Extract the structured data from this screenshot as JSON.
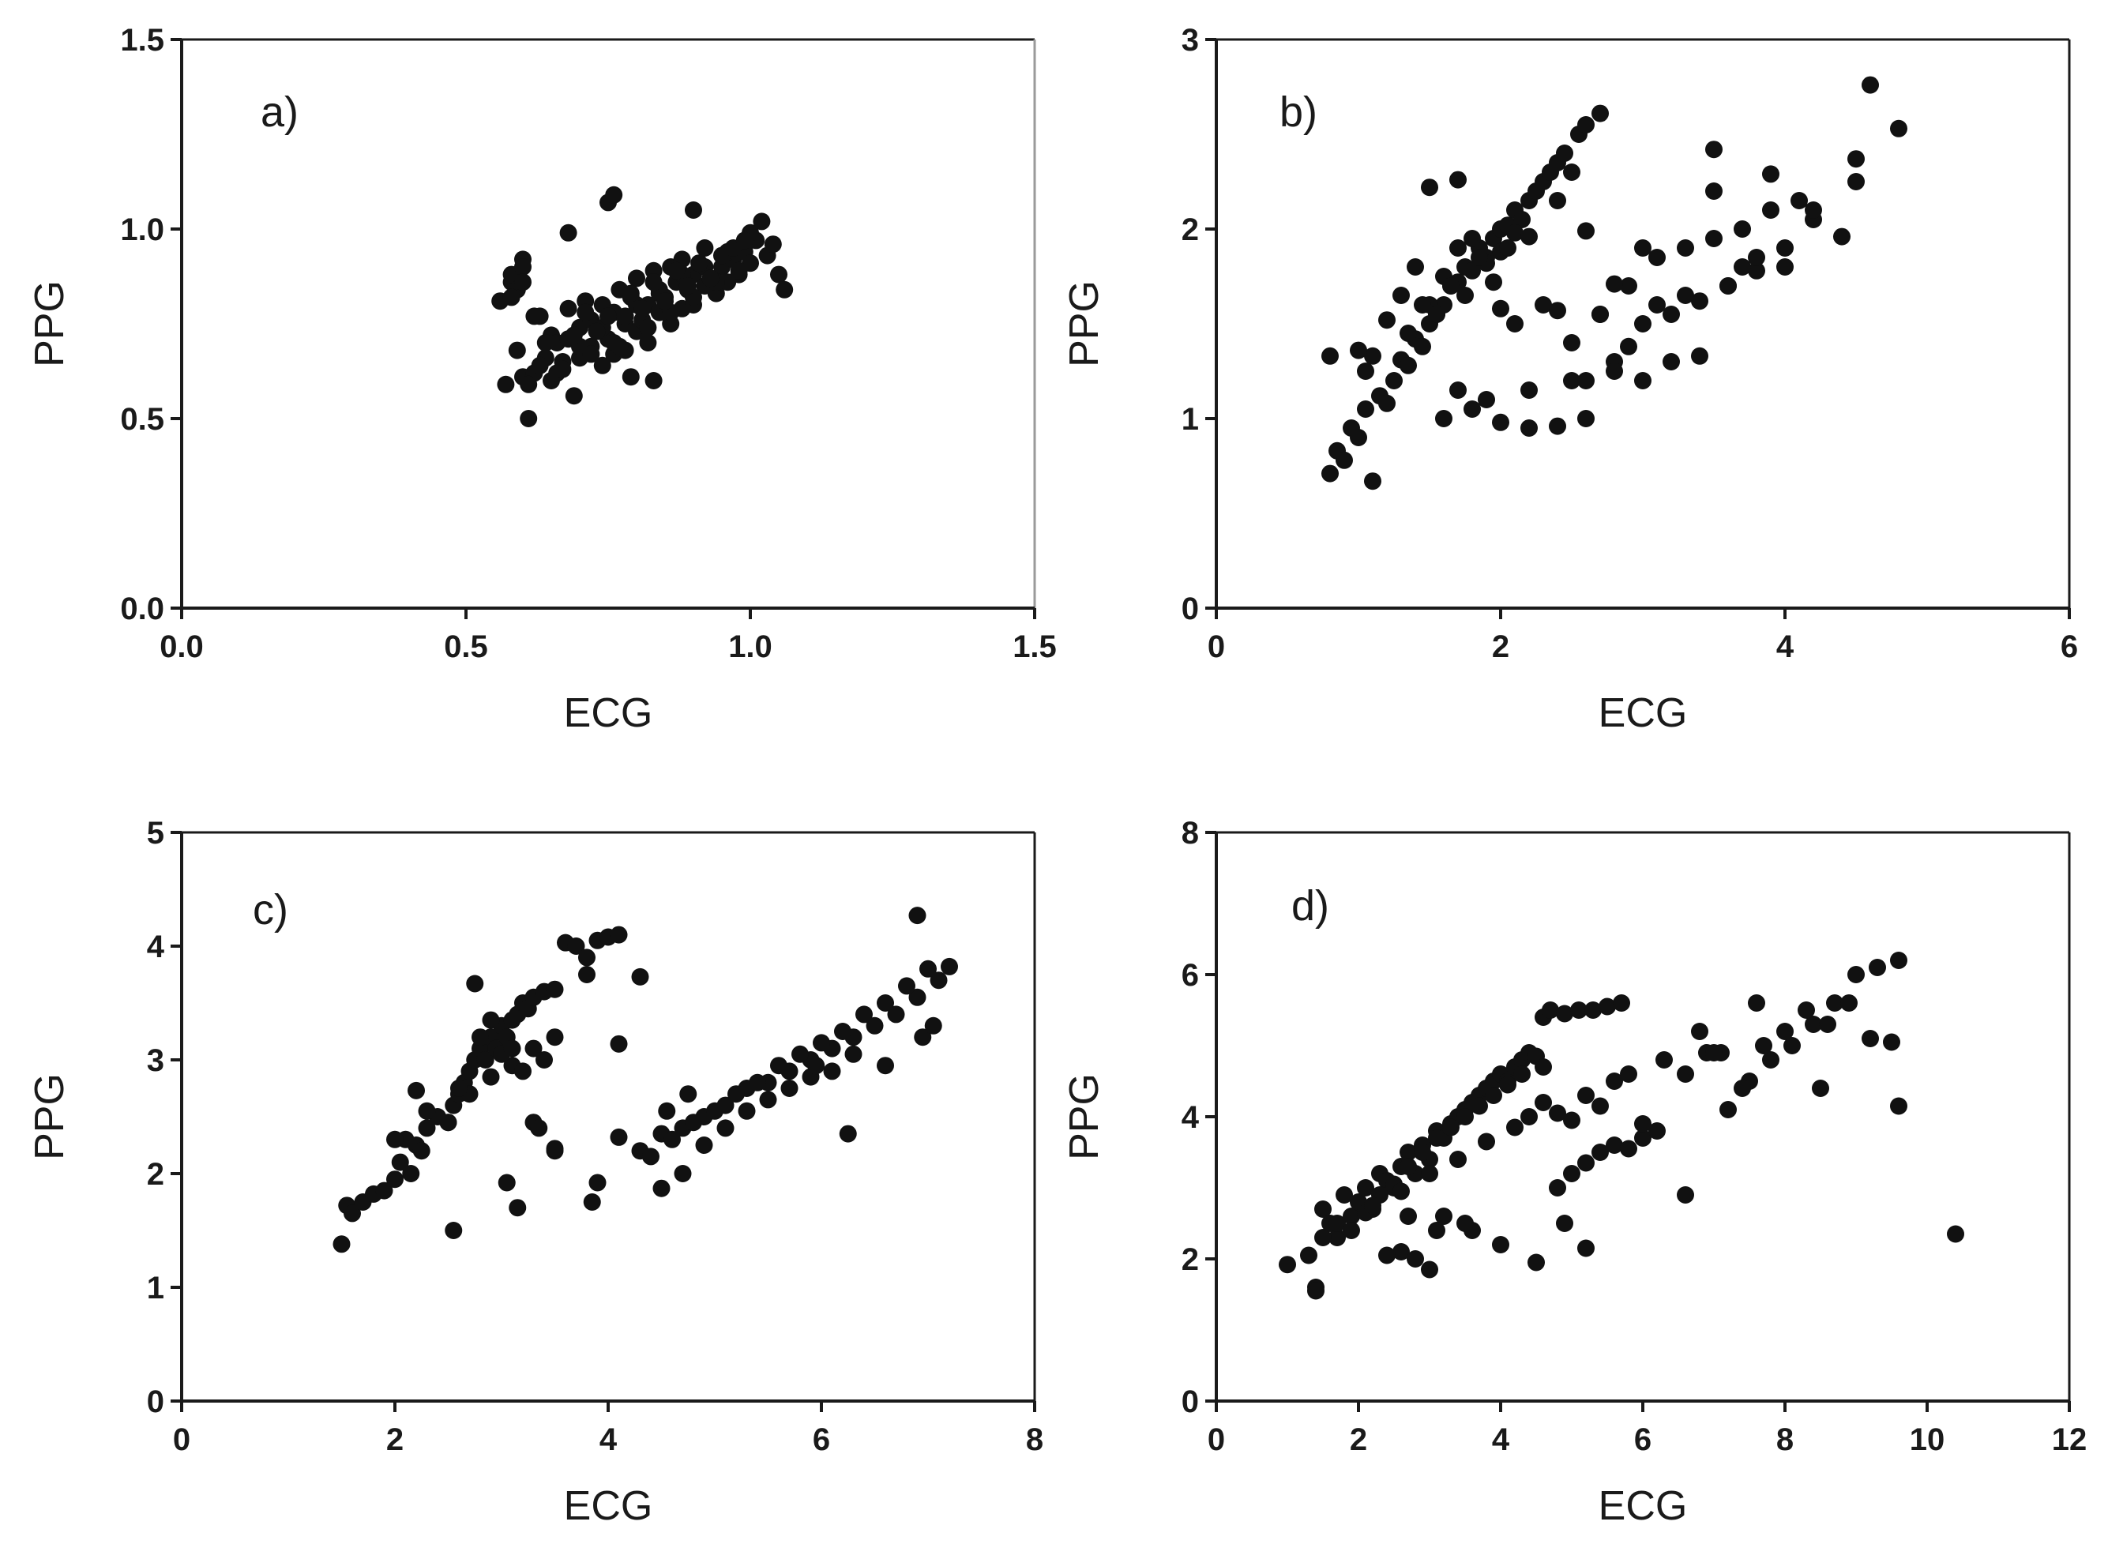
{
  "chart_data": [
    {
      "type": "scatter",
      "panel_label": "a)",
      "xlabel": "ECG",
      "ylabel": "PPG",
      "xlim": [
        0,
        1.5
      ],
      "ylim": [
        0,
        1.5
      ],
      "xticks": [
        "0.0",
        "0.5",
        "1.0",
        "1.5"
      ],
      "yticks": [
        "0.0",
        "0.5",
        "1.0",
        "1.5"
      ],
      "grid": false,
      "series": [
        {
          "name": "points",
          "x": [
            0.56,
            0.57,
            0.58,
            0.59,
            0.6,
            0.61,
            0.6,
            0.62,
            0.63,
            0.64,
            0.65,
            0.65,
            0.66,
            0.67,
            0.68,
            0.69,
            0.7,
            0.7,
            0.71,
            0.72,
            0.72,
            0.73,
            0.74,
            0.74,
            0.75,
            0.76,
            0.76,
            0.77,
            0.78,
            0.78,
            0.79,
            0.8,
            0.8,
            0.81,
            0.82,
            0.82,
            0.83,
            0.84,
            0.84,
            0.85,
            0.86,
            0.86,
            0.87,
            0.88,
            0.88,
            0.89,
            0.9,
            0.9,
            0.91,
            0.92,
            0.92,
            0.93,
            0.94,
            0.95,
            0.96,
            0.97,
            0.98,
            0.99,
            1.0,
            1.01,
            1.02,
            1.03,
            1.04,
            1.05,
            1.06,
            0.58,
            0.59,
            0.6,
            0.61,
            0.63,
            0.66,
            0.68,
            0.7,
            0.72,
            0.74,
            0.76,
            0.78,
            0.8,
            0.82,
            0.84,
            0.86,
            0.88,
            0.9,
            0.92,
            0.94,
            0.96,
            0.98,
            1.0,
            0.64,
            0.67,
            0.69,
            0.71,
            0.73,
            0.75,
            0.77,
            0.79,
            0.81,
            0.83,
            0.85,
            0.87,
            0.89,
            0.91,
            0.93,
            0.95,
            0.97,
            0.99,
            0.75,
            0.76,
            0.68,
            0.6,
            0.58,
            0.62,
            0.9,
            0.83,
            0.79
          ],
          "y": [
            0.81,
            0.59,
            0.86,
            0.68,
            0.61,
            0.5,
            0.92,
            0.62,
            0.77,
            0.66,
            0.72,
            0.6,
            0.7,
            0.65,
            0.79,
            0.56,
            0.74,
            0.66,
            0.81,
            0.69,
            0.76,
            0.73,
            0.64,
            0.8,
            0.71,
            0.78,
            0.67,
            0.84,
            0.75,
            0.68,
            0.82,
            0.73,
            0.87,
            0.76,
            0.8,
            0.7,
            0.89,
            0.78,
            0.84,
            0.82,
            0.9,
            0.75,
            0.86,
            0.79,
            0.92,
            0.84,
            0.88,
            0.8,
            0.91,
            0.85,
            0.95,
            0.87,
            0.83,
            0.9,
            0.86,
            0.92,
            0.88,
            0.94,
            0.91,
            0.97,
            1.02,
            0.93,
            0.96,
            0.88,
            0.84,
            0.88,
            0.84,
            0.9,
            0.59,
            0.64,
            0.62,
            0.71,
            0.69,
            0.67,
            0.74,
            0.7,
            0.77,
            0.8,
            0.74,
            0.83,
            0.78,
            0.88,
            0.82,
            0.9,
            0.86,
            0.94,
            0.89,
            0.99,
            0.7,
            0.63,
            0.72,
            0.78,
            0.73,
            0.77,
            0.69,
            0.83,
            0.79,
            0.86,
            0.81,
            0.89,
            0.85,
            0.91,
            0.87,
            0.93,
            0.95,
            0.97,
            1.07,
            1.09,
            0.99,
            0.86,
            0.82,
            0.77,
            1.05,
            0.6,
            0.61
          ]
        }
      ]
    },
    {
      "type": "scatter",
      "panel_label": "b)",
      "xlabel": "ECG",
      "ylabel": "PPG",
      "xlim": [
        0,
        6
      ],
      "ylim": [
        0,
        3
      ],
      "xticks": [
        "0",
        "2",
        "4",
        "6"
      ],
      "yticks": [
        "0",
        "1",
        "2",
        "3"
      ],
      "grid": false,
      "series": [
        {
          "name": "points",
          "x": [
            0.8,
            0.85,
            0.9,
            0.95,
            1.0,
            1.05,
            1.1,
            1.15,
            1.2,
            1.25,
            1.3,
            1.35,
            1.4,
            1.45,
            1.5,
            1.55,
            1.6,
            1.65,
            1.7,
            1.75,
            1.8,
            1.85,
            1.9,
            1.95,
            2.0,
            2.05,
            2.1,
            2.15,
            2.2,
            2.25,
            2.3,
            2.35,
            2.4,
            2.45,
            2.5,
            2.55,
            2.6,
            2.7,
            1.3,
            1.4,
            1.5,
            1.6,
            1.7,
            1.8,
            1.9,
            2.0,
            2.1,
            1.2,
            1.35,
            1.45,
            1.55,
            1.65,
            1.75,
            1.85,
            1.95,
            2.05,
            2.2,
            1.5,
            1.7,
            1.1,
            1.0,
            0.8,
            1.05,
            2.6,
            2.4,
            2.1,
            1.9,
            1.7,
            1.6,
            1.8,
            2.0,
            2.2,
            2.4,
            2.6,
            2.8,
            3.0,
            3.2,
            3.4,
            3.6,
            3.8,
            4.0,
            2.5,
            2.7,
            2.9,
            3.1,
            3.3,
            3.5,
            3.7,
            3.9,
            4.1,
            2.3,
            2.5,
            2.7,
            2.9,
            3.1,
            3.3,
            3.5,
            3.7,
            2.6,
            2.8,
            3.0,
            3.2,
            3.4,
            3.6,
            3.8,
            4.0,
            4.2,
            4.4,
            4.5,
            4.6,
            4.8,
            4.2,
            3.5,
            3.0,
            2.8,
            2.4,
            2.2,
            2.0,
            3.9,
            4.5
          ],
          "y": [
            0.71,
            0.83,
            0.78,
            0.95,
            0.9,
            1.05,
            0.67,
            1.12,
            1.08,
            1.2,
            1.31,
            1.28,
            1.42,
            1.38,
            1.5,
            1.55,
            1.6,
            1.7,
            1.72,
            1.8,
            1.78,
            1.9,
            1.85,
            1.95,
            2.0,
            2.02,
            2.1,
            2.05,
            2.15,
            2.2,
            2.25,
            2.3,
            2.35,
            2.4,
            2.3,
            2.5,
            2.55,
            2.61,
            1.65,
            1.8,
            1.6,
            1.75,
            1.9,
            1.95,
            1.82,
            1.88,
            1.98,
            1.52,
            1.45,
            1.6,
            1.55,
            1.7,
            1.65,
            1.85,
            1.72,
            1.9,
            1.96,
            2.22,
            2.26,
            1.33,
            1.36,
            1.33,
            1.25,
            1.99,
            2.15,
            1.5,
            1.1,
            1.15,
            1.0,
            1.05,
            0.98,
            0.95,
            0.96,
            1.2,
            1.3,
            1.5,
            1.55,
            1.62,
            1.7,
            1.78,
            1.8,
            1.4,
            1.55,
            1.7,
            1.85,
            1.9,
            1.95,
            2.0,
            2.1,
            2.15,
            1.6,
            1.2,
            1.55,
            1.38,
            1.6,
            1.65,
            2.2,
            1.8,
            1.0,
            1.25,
            1.2,
            1.3,
            1.33,
            1.7,
            1.85,
            1.9,
            2.05,
            1.96,
            2.37,
            2.76,
            2.53,
            2.1,
            2.42,
            1.9,
            1.71,
            1.57,
            1.15,
            1.58,
            2.29,
            2.25
          ]
        }
      ]
    },
    {
      "type": "scatter",
      "panel_label": "c)",
      "xlabel": "ECG",
      "ylabel": "PPG",
      "xlim": [
        0,
        8
      ],
      "ylim": [
        0,
        5
      ],
      "xticks": [
        "0",
        "2",
        "4",
        "6",
        "8"
      ],
      "yticks": [
        "0",
        "1",
        "2",
        "3",
        "4",
        "5"
      ],
      "grid": false,
      "series": [
        {
          "name": "points",
          "x": [
            1.5,
            1.55,
            1.6,
            1.7,
            1.8,
            1.9,
            2.0,
            2.05,
            2.1,
            2.15,
            2.2,
            2.25,
            2.3,
            2.4,
            2.5,
            2.55,
            2.6,
            2.65,
            2.7,
            2.75,
            2.8,
            2.85,
            2.9,
            2.95,
            3.0,
            3.05,
            3.1,
            3.15,
            3.2,
            3.25,
            3.3,
            3.4,
            3.5,
            3.6,
            3.7,
            3.8,
            3.9,
            4.0,
            4.1,
            2.3,
            2.5,
            2.7,
            2.9,
            3.1,
            3.3,
            3.5,
            2.6,
            2.8,
            3.0,
            3.2,
            3.4,
            2.2,
            2.0,
            2.75,
            2.9,
            3.1,
            3.3,
            3.5,
            3.9,
            4.3,
            4.1,
            3.8,
            3.05,
            3.15,
            3.35,
            3.5,
            3.85,
            2.55,
            4.1,
            4.3,
            4.5,
            4.7,
            4.9,
            5.1,
            5.3,
            5.5,
            5.7,
            5.9,
            6.1,
            6.3,
            6.5,
            6.7,
            6.9,
            7.1,
            4.4,
            4.6,
            4.8,
            5.0,
            5.2,
            5.4,
            5.6,
            5.8,
            6.0,
            6.2,
            6.4,
            6.6,
            6.8,
            7.0,
            7.2,
            4.5,
            4.7,
            4.9,
            5.1,
            5.3,
            5.5,
            5.7,
            5.9,
            6.1,
            6.3,
            6.6,
            6.9,
            6.95,
            7.05,
            5.95,
            6.25,
            4.55,
            4.75
          ],
          "y": [
            1.38,
            1.72,
            1.65,
            1.75,
            1.82,
            1.85,
            1.95,
            2.1,
            2.3,
            2.0,
            2.25,
            2.2,
            2.4,
            2.5,
            2.45,
            2.6,
            2.7,
            2.8,
            2.9,
            3.0,
            3.1,
            3.0,
            3.2,
            3.1,
            3.3,
            3.2,
            3.35,
            3.4,
            3.5,
            3.45,
            3.55,
            3.6,
            3.62,
            4.03,
            4.0,
            3.9,
            4.05,
            4.08,
            4.1,
            2.55,
            2.45,
            2.7,
            2.85,
            2.95,
            3.1,
            3.2,
            2.75,
            3.2,
            3.05,
            2.9,
            3.0,
            2.73,
            2.3,
            3.67,
            3.35,
            3.1,
            2.45,
            2.2,
            1.92,
            3.73,
            3.14,
            3.75,
            1.92,
            1.7,
            2.4,
            2.22,
            1.75,
            1.5,
            2.32,
            2.2,
            2.35,
            2.4,
            2.5,
            2.6,
            2.75,
            2.8,
            2.9,
            3.0,
            3.1,
            3.2,
            3.3,
            3.4,
            3.55,
            3.7,
            2.15,
            2.3,
            2.45,
            2.55,
            2.7,
            2.8,
            2.95,
            3.05,
            3.15,
            3.25,
            3.4,
            3.5,
            3.65,
            3.8,
            3.82,
            1.87,
            2.0,
            2.25,
            2.4,
            2.55,
            2.65,
            2.75,
            2.85,
            2.9,
            3.05,
            2.95,
            4.27,
            3.2,
            3.3,
            2.95,
            2.35,
            2.55,
            2.7
          ],
          "extra": "1.42 1.37"
        }
      ]
    },
    {
      "type": "scatter",
      "panel_label": "d)",
      "xlabel": "ECG",
      "ylabel": "PPG",
      "xlim": [
        0,
        12
      ],
      "ylim": [
        0,
        8
      ],
      "xticks": [
        "0",
        "2",
        "4",
        "6",
        "8",
        "10",
        "12"
      ],
      "yticks": [
        "0",
        "2",
        "4",
        "6",
        "8"
      ],
      "grid": false,
      "series": [
        {
          "name": "points",
          "x": [
            1.0,
            1.3,
            1.4,
            1.5,
            1.6,
            1.7,
            1.8,
            1.9,
            2.0,
            2.1,
            2.2,
            2.3,
            2.4,
            2.5,
            2.6,
            2.7,
            2.8,
            2.9,
            3.0,
            3.1,
            3.2,
            3.3,
            3.4,
            3.5,
            3.6,
            3.7,
            3.8,
            3.9,
            4.0,
            4.1,
            4.2,
            4.3,
            4.4,
            4.5,
            4.6,
            1.5,
            1.7,
            1.9,
            2.1,
            2.3,
            2.5,
            2.7,
            2.9,
            3.1,
            3.3,
            3.5,
            3.7,
            3.9,
            4.1,
            4.3,
            2.2,
            2.6,
            3.0,
            3.4,
            3.8,
            4.2,
            4.6,
            4.7,
            4.9,
            5.1,
            5.3,
            5.5,
            5.7,
            4.8,
            5.0,
            5.2,
            5.4,
            5.6,
            5.8,
            6.0,
            6.2,
            4.4,
            4.6,
            4.8,
            5.0,
            5.2,
            5.4,
            5.6,
            5.8,
            6.0,
            3.2,
            3.6,
            4.0,
            3.5,
            2.6,
            2.8,
            3.0,
            2.4,
            4.5,
            4.9,
            5.2,
            6.3,
            6.6,
            6.9,
            7.2,
            7.5,
            7.8,
            8.1,
            8.4,
            8.7,
            9.0,
            9.3,
            9.6,
            6.8,
            7.1,
            7.4,
            7.7,
            8.0,
            8.3,
            8.6,
            8.9,
            9.2,
            9.5,
            7.0,
            7.6,
            8.5,
            9.6,
            6.6,
            10.4,
            1.4,
            2.7,
            3.1
          ],
          "y": [
            1.92,
            2.05,
            1.6,
            2.7,
            2.5,
            2.3,
            2.9,
            2.6,
            2.8,
            3.0,
            2.7,
            3.2,
            3.1,
            3.0,
            3.3,
            3.5,
            3.2,
            3.6,
            3.4,
            3.8,
            3.7,
            3.9,
            4.0,
            4.1,
            4.2,
            4.3,
            4.4,
            4.5,
            4.6,
            4.5,
            4.7,
            4.8,
            4.9,
            4.85,
            4.7,
            2.3,
            2.5,
            2.4,
            2.65,
            2.9,
            3.05,
            3.3,
            3.5,
            3.7,
            3.85,
            4.0,
            4.15,
            4.3,
            4.45,
            4.6,
            2.75,
            2.95,
            3.2,
            3.4,
            3.65,
            3.85,
            5.4,
            5.5,
            5.45,
            5.5,
            5.5,
            5.55,
            5.6,
            3.0,
            3.2,
            3.35,
            3.5,
            3.6,
            3.55,
            3.7,
            3.8,
            4.0,
            4.2,
            4.05,
            3.95,
            4.3,
            4.15,
            4.5,
            4.6,
            3.9,
            2.6,
            2.4,
            2.2,
            2.5,
            2.1,
            2.0,
            1.85,
            2.05,
            1.95,
            2.5,
            2.15,
            4.8,
            4.6,
            4.9,
            4.1,
            4.5,
            4.8,
            5.0,
            5.3,
            5.6,
            6.0,
            6.1,
            6.2,
            5.2,
            4.9,
            4.4,
            5.0,
            5.2,
            5.5,
            5.3,
            5.6,
            5.1,
            5.05,
            4.9,
            5.6,
            4.4,
            4.15,
            2.9,
            2.35,
            1.55,
            2.6,
            2.4
          ]
        }
      ]
    }
  ]
}
